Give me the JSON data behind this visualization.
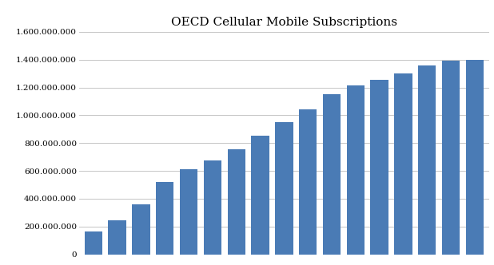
{
  "title": "OECD Cellular Mobile Subscriptions",
  "values": [
    165000000,
    245000000,
    360000000,
    520000000,
    615000000,
    675000000,
    755000000,
    855000000,
    950000000,
    1040000000,
    1150000000,
    1215000000,
    1255000000,
    1300000000,
    1360000000,
    1390000000,
    1400000000
  ],
  "bar_color": "#4a7bb5",
  "ylim": [
    0,
    1600000000
  ],
  "yticks": [
    0,
    200000000,
    400000000,
    600000000,
    800000000,
    1000000000,
    1200000000,
    1400000000,
    1600000000
  ],
  "ytick_labels": [
    "0",
    "200.000.000",
    "400.000.000",
    "600.000.000",
    "800.000.000",
    "1.000.000.000",
    "1.200.000.000",
    "1.400.000.000",
    "1.600.000.000"
  ],
  "title_fontsize": 11,
  "tick_fontsize": 7.5,
  "background_color": "#ffffff",
  "grid_color": "#bbbbbb",
  "title_font": "serif"
}
